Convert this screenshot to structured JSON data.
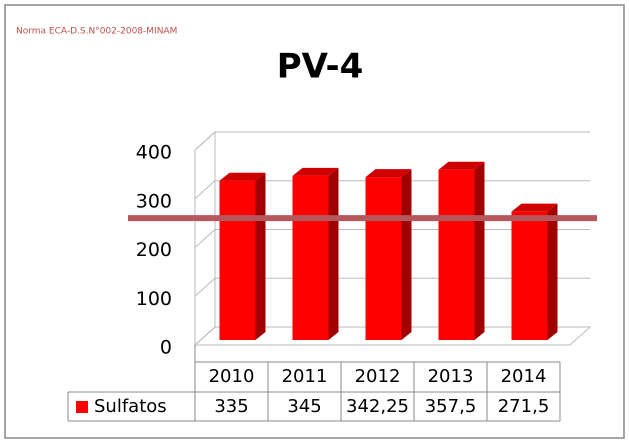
{
  "chart_data": {
    "type": "bar3d",
    "title": "PV-4",
    "annotation": "Norma ECA-D.S.N°002-2008-MINAM",
    "categories": [
      "2010",
      "2011",
      "2012",
      "2013",
      "2014"
    ],
    "series": [
      {
        "name": "Sulfatos",
        "color": "#ff0000",
        "values": [
          335,
          345,
          342.25,
          357.5,
          271.5
        ],
        "value_labels": [
          "335",
          "345",
          "342,25",
          "357,5",
          "271,5"
        ]
      }
    ],
    "ylim": [
      0,
      400
    ],
    "yticks": [
      0,
      100,
      200,
      300,
      400
    ],
    "grid": true,
    "reference_line": {
      "value": 250,
      "color": "#b5575d"
    }
  }
}
